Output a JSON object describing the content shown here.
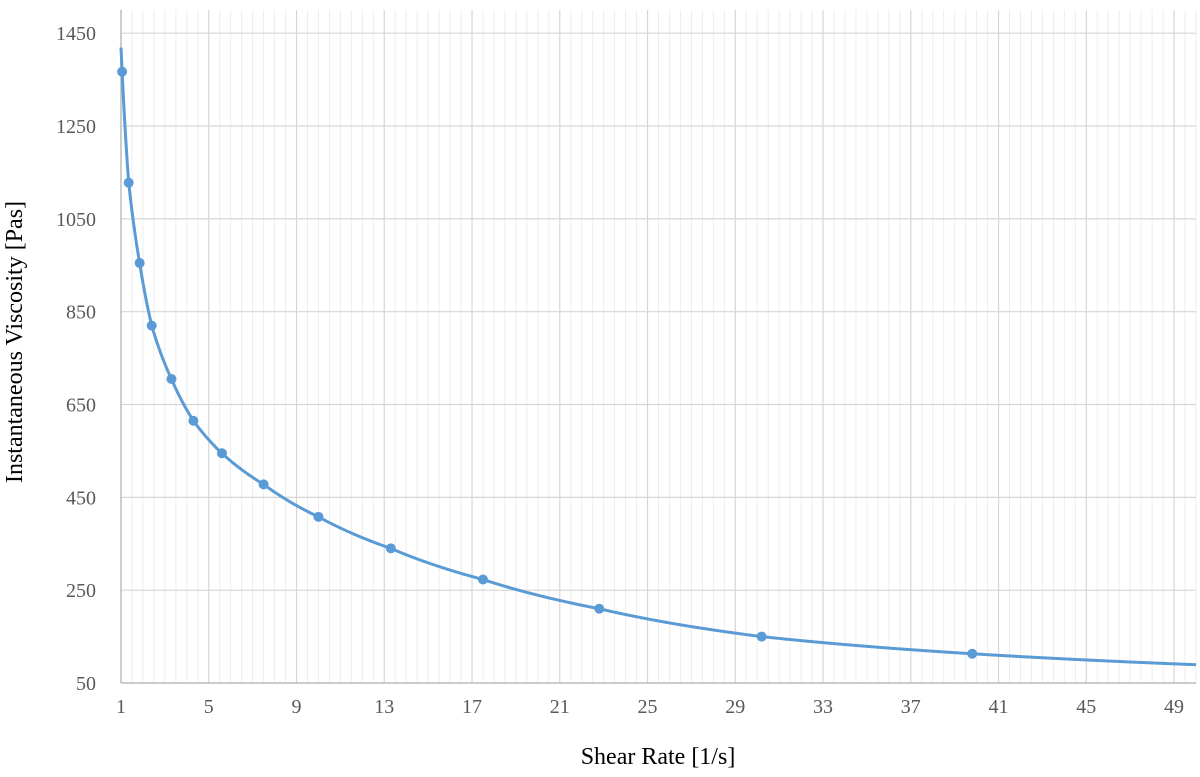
{
  "chart_data": {
    "type": "scatter",
    "title": "",
    "xlabel": "Shear Rate [1/s]",
    "ylabel": "Instantaneous Viscosity [Pas]",
    "xlim": [
      1,
      50
    ],
    "ylim": [
      50,
      1500
    ],
    "x_ticks": [
      "1",
      "5",
      "9",
      "13",
      "17",
      "21",
      "25",
      "29",
      "33",
      "37",
      "41",
      "45",
      "49"
    ],
    "y_ticks": [
      "50",
      "250",
      "450",
      "650",
      "850",
      "1050",
      "1250",
      "1450"
    ],
    "grid": true,
    "legend": "none",
    "series": [
      {
        "color": "#5b9bd5",
        "x": [
          1.05,
          1.35,
          1.85,
          2.4,
          3.3,
          4.3,
          5.6,
          7.5,
          10.0,
          13.3,
          17.5,
          22.8,
          30.2,
          39.8
        ],
        "y": [
          1367,
          1128,
          955,
          820,
          705,
          615,
          545,
          478,
          408,
          340,
          273,
          210,
          150,
          113
        ]
      }
    ]
  }
}
